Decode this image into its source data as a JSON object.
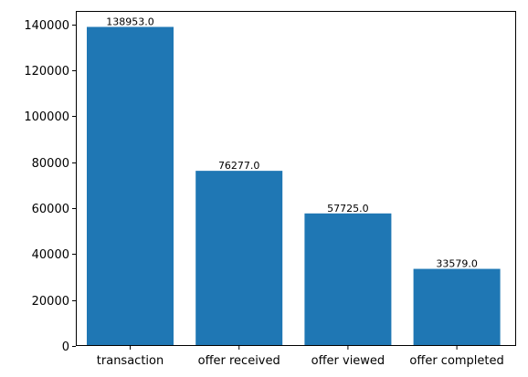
{
  "chart_data": {
    "type": "bar",
    "title": "",
    "xlabel": "",
    "ylabel": "",
    "categories": [
      "transaction",
      "offer received",
      "offer viewed",
      "offer completed"
    ],
    "values": [
      138953,
      76277,
      57725,
      33579
    ],
    "data_labels": [
      "138953.0",
      "76277.0",
      "57725.0",
      "33579.0"
    ],
    "ylim": [
      0,
      145900
    ],
    "yticks": [
      0,
      20000,
      40000,
      60000,
      80000,
      100000,
      120000,
      140000
    ],
    "ytick_labels": [
      "0",
      "20000",
      "40000",
      "60000",
      "80000",
      "100000",
      "120000",
      "140000"
    ],
    "grid": false,
    "bar_color": "#1f77b4"
  }
}
